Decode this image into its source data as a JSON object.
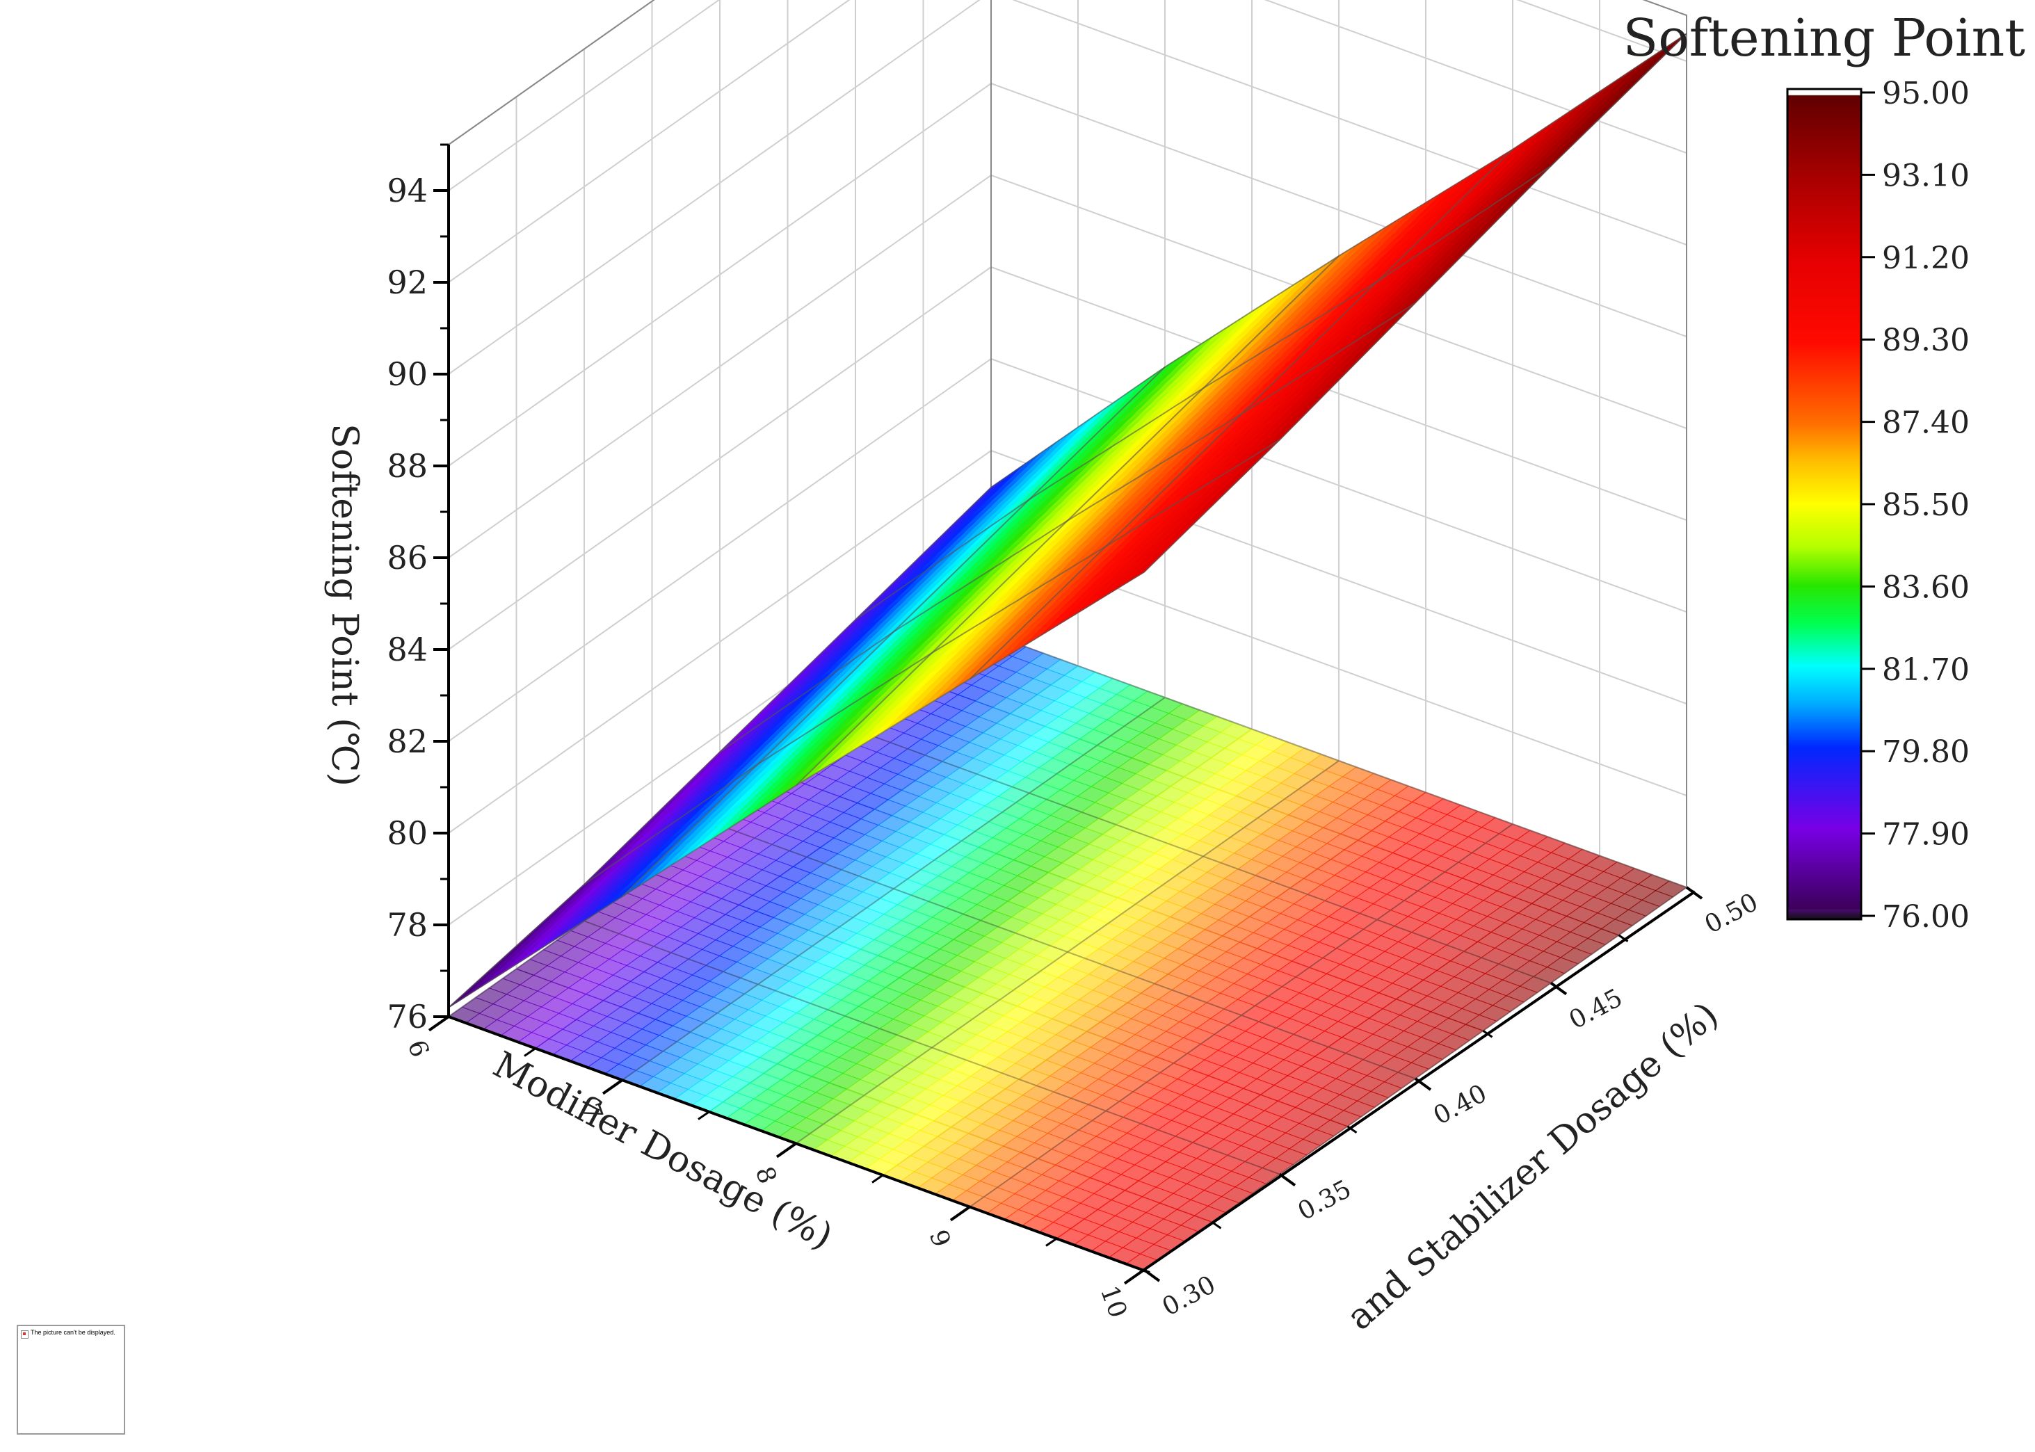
{
  "chart_data": {
    "type": "surface",
    "x_axis": {
      "label": "Modifier Dosage (%)",
      "ticks": [
        6,
        7,
        8,
        9,
        10
      ],
      "range": [
        6,
        10
      ]
    },
    "y_axis": {
      "label": "and Stabilizer Dosage (%)",
      "ticks": [
        "0.30",
        "0.35",
        "0.40",
        "0.45",
        "0.50"
      ],
      "range": [
        0.3,
        0.5
      ]
    },
    "z_axis": {
      "label": "Softening Point (℃)",
      "ticks": [
        76,
        78,
        80,
        82,
        84,
        86,
        88,
        90,
        92,
        94
      ],
      "range": [
        76,
        95
      ]
    },
    "x": [
      6,
      7,
      8,
      9,
      10
    ],
    "y": [
      0.3,
      0.35,
      0.4,
      0.45,
      0.5
    ],
    "z": [
      [
        76.2,
        76.8,
        77.6,
        78.4,
        79.2
      ],
      [
        80.0,
        80.8,
        81.6,
        82.4,
        83.2
      ],
      [
        83.8,
        84.6,
        85.4,
        86.2,
        87.0
      ],
      [
        87.5,
        88.3,
        89.1,
        89.9,
        90.7
      ],
      [
        91.2,
        92.0,
        92.9,
        93.8,
        94.6
      ]
    ],
    "colorbar": {
      "title": "Softening Point",
      "ticks": [
        "95.00",
        "93.10",
        "91.20",
        "89.30",
        "87.40",
        "85.50",
        "83.60",
        "81.70",
        "79.80",
        "77.90",
        "76.00"
      ],
      "range": [
        76,
        95
      ],
      "colors": [
        "#1a1a1a",
        "#6a0ea0",
        "#7a00ff",
        "#0000ff",
        "#00a0ff",
        "#00ffff",
        "#00ff00",
        "#7fff00",
        "#ffff00",
        "#ffb000",
        "#ff6000",
        "#ff0000",
        "#c00000",
        "#6a0000",
        "#ffffff"
      ]
    },
    "projection_on_floor": true,
    "grid": true
  },
  "placeholder_image": {
    "text": "The picture can't be displayed."
  }
}
